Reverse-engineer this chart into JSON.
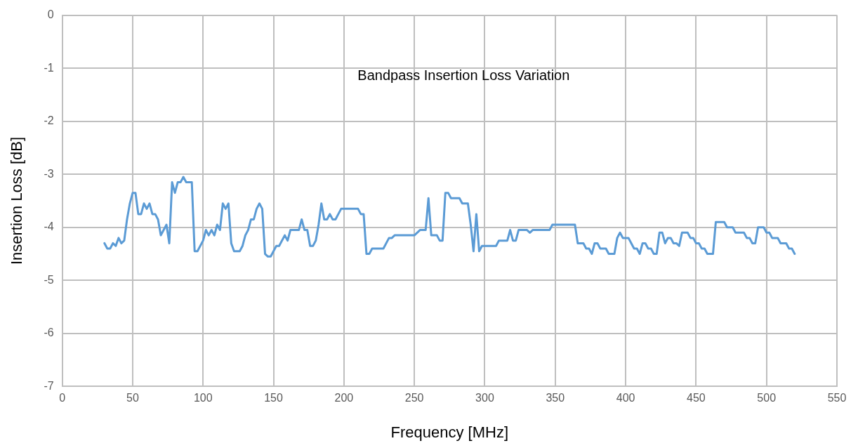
{
  "chart_data": {
    "type": "line",
    "title": "Bandpass Insertion Loss Variation",
    "xlabel": "Frequency [MHz]",
    "ylabel": "Insertion Loss [dB]",
    "xlim": [
      0,
      550
    ],
    "xticks": [
      0,
      50,
      100,
      150,
      200,
      250,
      300,
      350,
      400,
      450,
      500,
      550
    ],
    "ylim": [
      -7,
      0
    ],
    "yticks": [
      -7,
      -6,
      -5,
      -4,
      -3,
      -2,
      -1,
      0
    ],
    "grid": true,
    "legend": false,
    "marker": "none",
    "line_style": "solid",
    "series": [
      {
        "color": "#5b9bd5",
        "x": [
          30,
          32,
          34,
          36,
          38,
          40,
          42,
          44,
          46,
          48,
          50,
          52,
          54,
          56,
          58,
          60,
          62,
          64,
          66,
          68,
          70,
          72,
          74,
          76,
          78,
          80,
          82,
          84,
          86,
          88,
          92,
          94,
          96,
          100,
          102,
          104,
          106,
          108,
          110,
          112,
          114,
          116,
          118,
          120,
          122,
          126,
          128,
          130,
          132,
          134,
          136,
          138,
          140,
          142,
          144,
          146,
          148,
          152,
          154,
          158,
          160,
          162,
          168,
          170,
          172,
          174,
          176,
          178,
          180,
          182,
          184,
          186,
          188,
          190,
          192,
          194,
          196,
          198,
          210,
          212,
          214,
          216,
          218,
          220,
          228,
          232,
          234,
          236,
          250,
          254,
          258,
          260,
          262,
          266,
          268,
          270,
          272,
          274,
          276,
          282,
          284,
          288,
          290,
          292,
          294,
          296,
          298,
          308,
          310,
          316,
          318,
          320,
          322,
          324,
          330,
          332,
          334,
          346,
          348,
          364,
          366,
          370,
          372,
          374,
          376,
          378,
          380,
          382,
          386,
          388,
          392,
          394,
          396,
          398,
          402,
          404,
          406,
          408,
          410,
          412,
          414,
          416,
          418,
          420,
          422,
          424,
          426,
          428,
          430,
          432,
          434,
          436,
          438,
          440,
          444,
          446,
          448,
          450,
          452,
          454,
          456,
          458,
          462,
          464,
          470,
          472,
          476,
          478,
          484,
          486,
          488,
          490,
          492,
          494,
          498,
          500,
          502,
          504,
          508,
          510,
          514,
          516,
          518,
          520
        ],
        "values": [
          -4.3,
          -4.4,
          -4.4,
          -4.3,
          -4.35,
          -4.2,
          -4.3,
          -4.25,
          -3.85,
          -3.55,
          -3.35,
          -3.35,
          -3.75,
          -3.75,
          -3.55,
          -3.65,
          -3.55,
          -3.75,
          -3.75,
          -3.85,
          -4.15,
          -4.05,
          -3.95,
          -4.3,
          -3.15,
          -3.35,
          -3.15,
          -3.15,
          -3.05,
          -3.15,
          -3.15,
          -4.45,
          -4.45,
          -4.25,
          -4.05,
          -4.15,
          -4.05,
          -4.15,
          -3.95,
          -4.05,
          -3.55,
          -3.65,
          -3.55,
          -4.3,
          -4.45,
          -4.45,
          -4.35,
          -4.15,
          -4.05,
          -3.85,
          -3.85,
          -3.65,
          -3.55,
          -3.65,
          -4.5,
          -4.55,
          -4.55,
          -4.35,
          -4.35,
          -4.15,
          -4.25,
          -4.05,
          -4.05,
          -3.85,
          -4.05,
          -4.05,
          -4.35,
          -4.35,
          -4.25,
          -3.95,
          -3.55,
          -3.85,
          -3.85,
          -3.75,
          -3.85,
          -3.85,
          -3.75,
          -3.65,
          -3.65,
          -3.75,
          -3.75,
          -4.5,
          -4.5,
          -4.4,
          -4.4,
          -4.2,
          -4.2,
          -4.15,
          -4.15,
          -4.05,
          -4.05,
          -3.45,
          -4.15,
          -4.15,
          -4.25,
          -4.25,
          -3.35,
          -3.35,
          -3.45,
          -3.45,
          -3.55,
          -3.55,
          -3.95,
          -4.45,
          -3.75,
          -4.45,
          -4.35,
          -4.35,
          -4.25,
          -4.25,
          -4.05,
          -4.25,
          -4.25,
          -4.05,
          -4.05,
          -4.1,
          -4.05,
          -4.05,
          -3.95,
          -3.95,
          -4.3,
          -4.3,
          -4.4,
          -4.4,
          -4.5,
          -4.3,
          -4.3,
          -4.4,
          -4.4,
          -4.5,
          -4.5,
          -4.2,
          -4.1,
          -4.2,
          -4.2,
          -4.3,
          -4.4,
          -4.4,
          -4.5,
          -4.3,
          -4.3,
          -4.4,
          -4.4,
          -4.5,
          -4.5,
          -4.1,
          -4.1,
          -4.3,
          -4.2,
          -4.2,
          -4.3,
          -4.3,
          -4.35,
          -4.1,
          -4.1,
          -4.2,
          -4.2,
          -4.3,
          -4.3,
          -4.4,
          -4.4,
          -4.5,
          -4.5,
          -3.9,
          -3.9,
          -4.0,
          -4.0,
          -4.1,
          -4.1,
          -4.2,
          -4.2,
          -4.3,
          -4.3,
          -4.0,
          -4.0,
          -4.1,
          -4.1,
          -4.2,
          -4.2,
          -4.3,
          -4.3,
          -4.4,
          -4.4,
          -4.5
        ]
      }
    ]
  }
}
